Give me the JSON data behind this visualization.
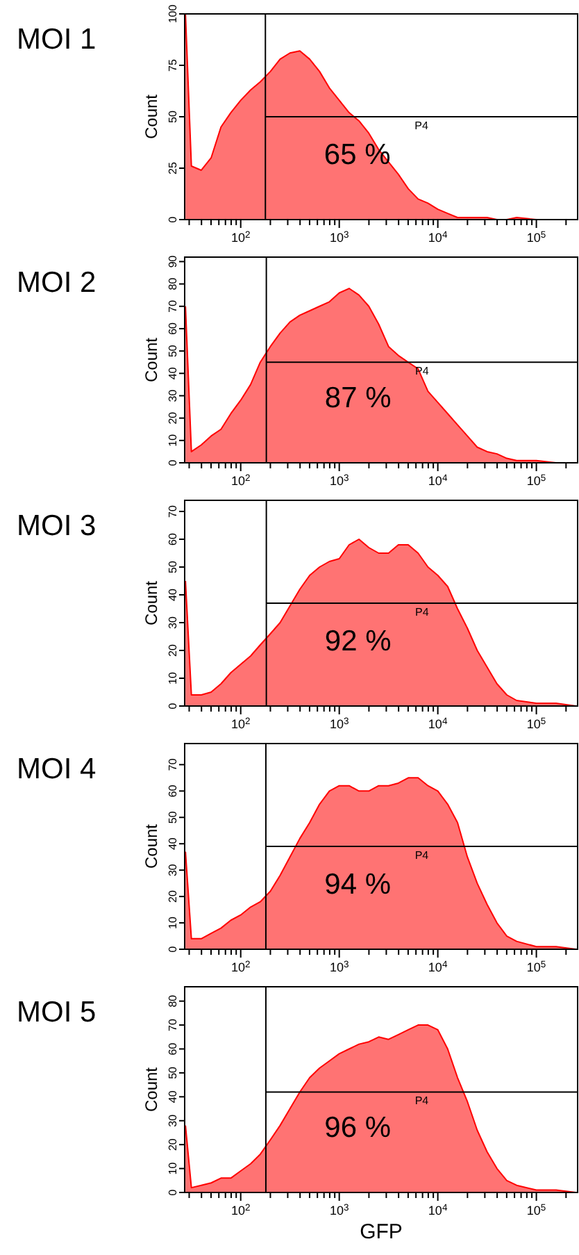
{
  "chart_data": [
    {
      "type": "area",
      "title": "MOI 1",
      "ylabel": "Count",
      "log": "x",
      "xlim": [
        27,
        262144
      ],
      "ylim": [
        0,
        100
      ],
      "yticks": [
        0,
        25,
        50,
        75,
        100
      ],
      "xticks": [
        {
          "value": 30,
          "label": null
        },
        {
          "value": 40,
          "label": null
        },
        {
          "value": 50,
          "label": null
        },
        {
          "value": 60,
          "label": null
        },
        {
          "value": 70,
          "label": null
        },
        {
          "value": 80,
          "label": null
        },
        {
          "value": 90,
          "label": null
        },
        {
          "value": 100,
          "label": "10$^{2}$"
        },
        {
          "value": 200,
          "label": null
        },
        {
          "value": 300,
          "label": null
        },
        {
          "value": 400,
          "label": null
        },
        {
          "value": 500,
          "label": null
        },
        {
          "value": 600,
          "label": null
        },
        {
          "value": 700,
          "label": null
        },
        {
          "value": 800,
          "label": null
        },
        {
          "value": 900,
          "label": null
        },
        {
          "value": 1000,
          "label": "10$^{3}$"
        },
        {
          "value": 2000,
          "label": null
        },
        {
          "value": 3000,
          "label": null
        },
        {
          "value": 4000,
          "label": null
        },
        {
          "value": 5000,
          "label": null
        },
        {
          "value": 6000,
          "label": null
        },
        {
          "value": 7000,
          "label": null
        },
        {
          "value": 8000,
          "label": null
        },
        {
          "value": 9000,
          "label": null
        },
        {
          "value": 10000,
          "label": "10$^{4}$"
        },
        {
          "value": 20000,
          "label": null
        },
        {
          "value": 30000,
          "label": null
        },
        {
          "value": 40000,
          "label": null
        },
        {
          "value": 50000,
          "label": null
        },
        {
          "value": 60000,
          "label": null
        },
        {
          "value": 70000,
          "label": null
        },
        {
          "value": 80000,
          "label": null
        },
        {
          "value": 90000,
          "label": null
        },
        {
          "value": 100000,
          "label": "10$^{5}$"
        },
        {
          "value": 200000,
          "label": null
        }
      ],
      "x": [
        27.5,
        31.6,
        39.8,
        50.1,
        63.1,
        79.4,
        100,
        126,
        158,
        200,
        251,
        316,
        398,
        501,
        631,
        794,
        1000,
        1259,
        1585,
        1995,
        2512,
        3162,
        3981,
        5012,
        6310,
        7943,
        10000,
        12589,
        15849,
        19953,
        25119,
        31623,
        39811,
        50119,
        63096,
        100000,
        158489,
        251189
      ],
      "series": [
        {
          "color": "#ff0000",
          "values": [
            100,
            26,
            24,
            30,
            45,
            52,
            58,
            63,
            67,
            72,
            78,
            81,
            82,
            78,
            72,
            64,
            58,
            52,
            48,
            42,
            34,
            28,
            22,
            15,
            10,
            8,
            5,
            3,
            1,
            1,
            1,
            1,
            0,
            0,
            1,
            0,
            0,
            0
          ]
        }
      ],
      "ref_lines": [
        {
          "axis": "x",
          "value": 178,
          "color": "#000000"
        },
        {
          "axis": "y",
          "value": 50,
          "label": "P4",
          "color": "#000000"
        }
      ],
      "annotations": [
        "65 %"
      ]
    },
    {
      "type": "area",
      "title": "MOI 2",
      "ylabel": "Count",
      "log": "x",
      "xlim": [
        27,
        262144
      ],
      "ylim": [
        0,
        92
      ],
      "yticks": [
        0,
        10,
        20,
        30,
        40,
        50,
        60,
        70,
        80,
        90
      ],
      "xticks": [
        {
          "value": 30,
          "label": null
        },
        {
          "value": 40,
          "label": null
        },
        {
          "value": 50,
          "label": null
        },
        {
          "value": 60,
          "label": null
        },
        {
          "value": 70,
          "label": null
        },
        {
          "value": 80,
          "label": null
        },
        {
          "value": 90,
          "label": null
        },
        {
          "value": 100,
          "label": "10$^{2}$"
        },
        {
          "value": 200,
          "label": null
        },
        {
          "value": 300,
          "label": null
        },
        {
          "value": 400,
          "label": null
        },
        {
          "value": 500,
          "label": null
        },
        {
          "value": 600,
          "label": null
        },
        {
          "value": 700,
          "label": null
        },
        {
          "value": 800,
          "label": null
        },
        {
          "value": 900,
          "label": null
        },
        {
          "value": 1000,
          "label": "10$^{3}$"
        },
        {
          "value": 2000,
          "label": null
        },
        {
          "value": 3000,
          "label": null
        },
        {
          "value": 4000,
          "label": null
        },
        {
          "value": 5000,
          "label": null
        },
        {
          "value": 6000,
          "label": null
        },
        {
          "value": 7000,
          "label": null
        },
        {
          "value": 8000,
          "label": null
        },
        {
          "value": 9000,
          "label": null
        },
        {
          "value": 10000,
          "label": "10$^{4}$"
        },
        {
          "value": 20000,
          "label": null
        },
        {
          "value": 30000,
          "label": null
        },
        {
          "value": 40000,
          "label": null
        },
        {
          "value": 50000,
          "label": null
        },
        {
          "value": 60000,
          "label": null
        },
        {
          "value": 70000,
          "label": null
        },
        {
          "value": 80000,
          "label": null
        },
        {
          "value": 90000,
          "label": null
        },
        {
          "value": 100000,
          "label": "10$^{5}$"
        },
        {
          "value": 200000,
          "label": null
        }
      ],
      "x": [
        27.5,
        31.6,
        39.8,
        50.1,
        63.1,
        79.4,
        100,
        126,
        158,
        200,
        251,
        316,
        398,
        501,
        631,
        794,
        1000,
        1259,
        1585,
        1995,
        2512,
        3162,
        3981,
        5012,
        6310,
        7943,
        10000,
        12589,
        15849,
        19953,
        25119,
        31623,
        39811,
        50119,
        63096,
        100000,
        158489,
        251189
      ],
      "series": [
        {
          "color": "#ff0000",
          "values": [
            70,
            5,
            8,
            12,
            15,
            22,
            28,
            35,
            45,
            52,
            58,
            63,
            66,
            68,
            70,
            72,
            76,
            78,
            75,
            70,
            62,
            52,
            48,
            45,
            42,
            32,
            27,
            22,
            17,
            12,
            7,
            5,
            4,
            2,
            1,
            1,
            0,
            0
          ]
        }
      ],
      "ref_lines": [
        {
          "axis": "x",
          "value": 182,
          "color": "#000000"
        },
        {
          "axis": "y",
          "value": 45,
          "label": "P4",
          "color": "#000000"
        }
      ],
      "annotations": [
        "87 %"
      ]
    },
    {
      "type": "area",
      "title": "MOI 3",
      "ylabel": "Count",
      "log": "x",
      "xlim": [
        27,
        262144
      ],
      "ylim": [
        0,
        74
      ],
      "yticks": [
        0,
        10,
        20,
        30,
        40,
        50,
        60,
        70
      ],
      "xticks": [
        {
          "value": 30,
          "label": null
        },
        {
          "value": 40,
          "label": null
        },
        {
          "value": 50,
          "label": null
        },
        {
          "value": 60,
          "label": null
        },
        {
          "value": 70,
          "label": null
        },
        {
          "value": 80,
          "label": null
        },
        {
          "value": 90,
          "label": null
        },
        {
          "value": 100,
          "label": "10$^{2}$"
        },
        {
          "value": 200,
          "label": null
        },
        {
          "value": 300,
          "label": null
        },
        {
          "value": 400,
          "label": null
        },
        {
          "value": 500,
          "label": null
        },
        {
          "value": 600,
          "label": null
        },
        {
          "value": 700,
          "label": null
        },
        {
          "value": 800,
          "label": null
        },
        {
          "value": 900,
          "label": null
        },
        {
          "value": 1000,
          "label": "10$^{3}$"
        },
        {
          "value": 2000,
          "label": null
        },
        {
          "value": 3000,
          "label": null
        },
        {
          "value": 4000,
          "label": null
        },
        {
          "value": 5000,
          "label": null
        },
        {
          "value": 6000,
          "label": null
        },
        {
          "value": 7000,
          "label": null
        },
        {
          "value": 8000,
          "label": null
        },
        {
          "value": 9000,
          "label": null
        },
        {
          "value": 10000,
          "label": "10$^{4}$"
        },
        {
          "value": 20000,
          "label": null
        },
        {
          "value": 30000,
          "label": null
        },
        {
          "value": 40000,
          "label": null
        },
        {
          "value": 50000,
          "label": null
        },
        {
          "value": 60000,
          "label": null
        },
        {
          "value": 70000,
          "label": null
        },
        {
          "value": 80000,
          "label": null
        },
        {
          "value": 90000,
          "label": null
        },
        {
          "value": 100000,
          "label": "10$^{5}$"
        },
        {
          "value": 200000,
          "label": null
        }
      ],
      "x": [
        27.5,
        31.6,
        39.8,
        50.1,
        63.1,
        79.4,
        100,
        126,
        158,
        200,
        251,
        316,
        398,
        501,
        631,
        794,
        1000,
        1259,
        1585,
        1995,
        2512,
        3162,
        3981,
        5012,
        6310,
        7943,
        10000,
        12589,
        15849,
        19953,
        25119,
        31623,
        39811,
        50119,
        63096,
        100000,
        158489,
        251189
      ],
      "series": [
        {
          "color": "#ff0000",
          "values": [
            45,
            4,
            4,
            5,
            8,
            12,
            15,
            18,
            22,
            26,
            30,
            36,
            42,
            47,
            50,
            52,
            53,
            58,
            60,
            57,
            55,
            55,
            58,
            58,
            55,
            50,
            47,
            43,
            35,
            28,
            20,
            14,
            8,
            4,
            2,
            1,
            1,
            0
          ]
        }
      ],
      "ref_lines": [
        {
          "axis": "x",
          "value": 182,
          "color": "#000000"
        },
        {
          "axis": "y",
          "value": 37,
          "label": "P4",
          "color": "#000000"
        }
      ],
      "annotations": [
        "92 %"
      ]
    },
    {
      "type": "area",
      "title": "MOI 4",
      "ylabel": "Count",
      "log": "x",
      "xlim": [
        27,
        262144
      ],
      "ylim": [
        0,
        78
      ],
      "yticks": [
        0,
        10,
        20,
        30,
        40,
        50,
        60,
        70
      ],
      "xticks": [
        {
          "value": 30,
          "label": null
        },
        {
          "value": 40,
          "label": null
        },
        {
          "value": 50,
          "label": null
        },
        {
          "value": 60,
          "label": null
        },
        {
          "value": 70,
          "label": null
        },
        {
          "value": 80,
          "label": null
        },
        {
          "value": 90,
          "label": null
        },
        {
          "value": 100,
          "label": "10$^{2}$"
        },
        {
          "value": 200,
          "label": null
        },
        {
          "value": 300,
          "label": null
        },
        {
          "value": 400,
          "label": null
        },
        {
          "value": 500,
          "label": null
        },
        {
          "value": 600,
          "label": null
        },
        {
          "value": 700,
          "label": null
        },
        {
          "value": 800,
          "label": null
        },
        {
          "value": 900,
          "label": null
        },
        {
          "value": 1000,
          "label": "10$^{3}$"
        },
        {
          "value": 2000,
          "label": null
        },
        {
          "value": 3000,
          "label": null
        },
        {
          "value": 4000,
          "label": null
        },
        {
          "value": 5000,
          "label": null
        },
        {
          "value": 6000,
          "label": null
        },
        {
          "value": 7000,
          "label": null
        },
        {
          "value": 8000,
          "label": null
        },
        {
          "value": 9000,
          "label": null
        },
        {
          "value": 10000,
          "label": "10$^{4}$"
        },
        {
          "value": 20000,
          "label": null
        },
        {
          "value": 30000,
          "label": null
        },
        {
          "value": 40000,
          "label": null
        },
        {
          "value": 50000,
          "label": null
        },
        {
          "value": 60000,
          "label": null
        },
        {
          "value": 70000,
          "label": null
        },
        {
          "value": 80000,
          "label": null
        },
        {
          "value": 90000,
          "label": null
        },
        {
          "value": 100000,
          "label": "10$^{5}$"
        },
        {
          "value": 200000,
          "label": null
        }
      ],
      "x": [
        27.5,
        31.6,
        39.8,
        50.1,
        63.1,
        79.4,
        100,
        126,
        158,
        200,
        251,
        316,
        398,
        501,
        631,
        794,
        1000,
        1259,
        1585,
        1995,
        2512,
        3162,
        3981,
        5012,
        6310,
        7943,
        10000,
        12589,
        15849,
        19953,
        25119,
        31623,
        39811,
        50119,
        63096,
        100000,
        158489,
        251189
      ],
      "series": [
        {
          "color": "#ff0000",
          "values": [
            37,
            4,
            4,
            6,
            8,
            11,
            13,
            16,
            18,
            22,
            28,
            35,
            42,
            48,
            55,
            60,
            62,
            62,
            60,
            60,
            62,
            62,
            63,
            65,
            65,
            62,
            60,
            55,
            48,
            35,
            25,
            17,
            10,
            5,
            3,
            1,
            1,
            0
          ]
        }
      ],
      "ref_lines": [
        {
          "axis": "x",
          "value": 180,
          "color": "#000000"
        },
        {
          "axis": "y",
          "value": 39,
          "label": "P4",
          "color": "#000000"
        }
      ],
      "annotations": [
        "94 %"
      ]
    },
    {
      "type": "area",
      "title": "MOI 5",
      "ylabel": "Count",
      "xlabel": "GFP",
      "log": "x",
      "xlim": [
        27,
        262144
      ],
      "ylim": [
        0,
        86
      ],
      "yticks": [
        0,
        10,
        20,
        30,
        40,
        50,
        60,
        70,
        80
      ],
      "xticks": [
        {
          "value": 30,
          "label": null
        },
        {
          "value": 40,
          "label": null
        },
        {
          "value": 50,
          "label": null
        },
        {
          "value": 60,
          "label": null
        },
        {
          "value": 70,
          "label": null
        },
        {
          "value": 80,
          "label": null
        },
        {
          "value": 90,
          "label": null
        },
        {
          "value": 100,
          "label": "10$^{2}$"
        },
        {
          "value": 200,
          "label": null
        },
        {
          "value": 300,
          "label": null
        },
        {
          "value": 400,
          "label": null
        },
        {
          "value": 500,
          "label": null
        },
        {
          "value": 600,
          "label": null
        },
        {
          "value": 700,
          "label": null
        },
        {
          "value": 800,
          "label": null
        },
        {
          "value": 900,
          "label": null
        },
        {
          "value": 1000,
          "label": "10$^{3}$"
        },
        {
          "value": 2000,
          "label": null
        },
        {
          "value": 3000,
          "label": null
        },
        {
          "value": 4000,
          "label": null
        },
        {
          "value": 5000,
          "label": null
        },
        {
          "value": 6000,
          "label": null
        },
        {
          "value": 7000,
          "label": null
        },
        {
          "value": 8000,
          "label": null
        },
        {
          "value": 9000,
          "label": null
        },
        {
          "value": 10000,
          "label": "10$^{4}$"
        },
        {
          "value": 20000,
          "label": null
        },
        {
          "value": 30000,
          "label": null
        },
        {
          "value": 40000,
          "label": null
        },
        {
          "value": 50000,
          "label": null
        },
        {
          "value": 60000,
          "label": null
        },
        {
          "value": 70000,
          "label": null
        },
        {
          "value": 80000,
          "label": null
        },
        {
          "value": 90000,
          "label": null
        },
        {
          "value": 100000,
          "label": "10$^{5}$"
        },
        {
          "value": 200000,
          "label": null
        }
      ],
      "x": [
        27.5,
        31.6,
        39.8,
        50.1,
        63.1,
        79.4,
        100,
        126,
        158,
        200,
        251,
        316,
        398,
        501,
        631,
        794,
        1000,
        1259,
        1585,
        1995,
        2512,
        3162,
        3981,
        5012,
        6310,
        7943,
        10000,
        12589,
        15849,
        19953,
        25119,
        31623,
        39811,
        50119,
        63096,
        100000,
        158489,
        251189
      ],
      "series": [
        {
          "color": "#ff0000",
          "values": [
            28,
            2,
            3,
            4,
            6,
            6,
            9,
            12,
            16,
            22,
            28,
            35,
            42,
            48,
            52,
            55,
            58,
            60,
            62,
            63,
            65,
            64,
            66,
            68,
            70,
            70,
            68,
            60,
            48,
            38,
            26,
            17,
            10,
            5,
            3,
            1,
            1,
            0
          ]
        }
      ],
      "ref_lines": [
        {
          "axis": "x",
          "value": 180,
          "color": "#000000"
        },
        {
          "axis": "y",
          "value": 42,
          "label": "P4",
          "color": "#000000"
        }
      ],
      "annotations": [
        "96 %"
      ]
    }
  ]
}
